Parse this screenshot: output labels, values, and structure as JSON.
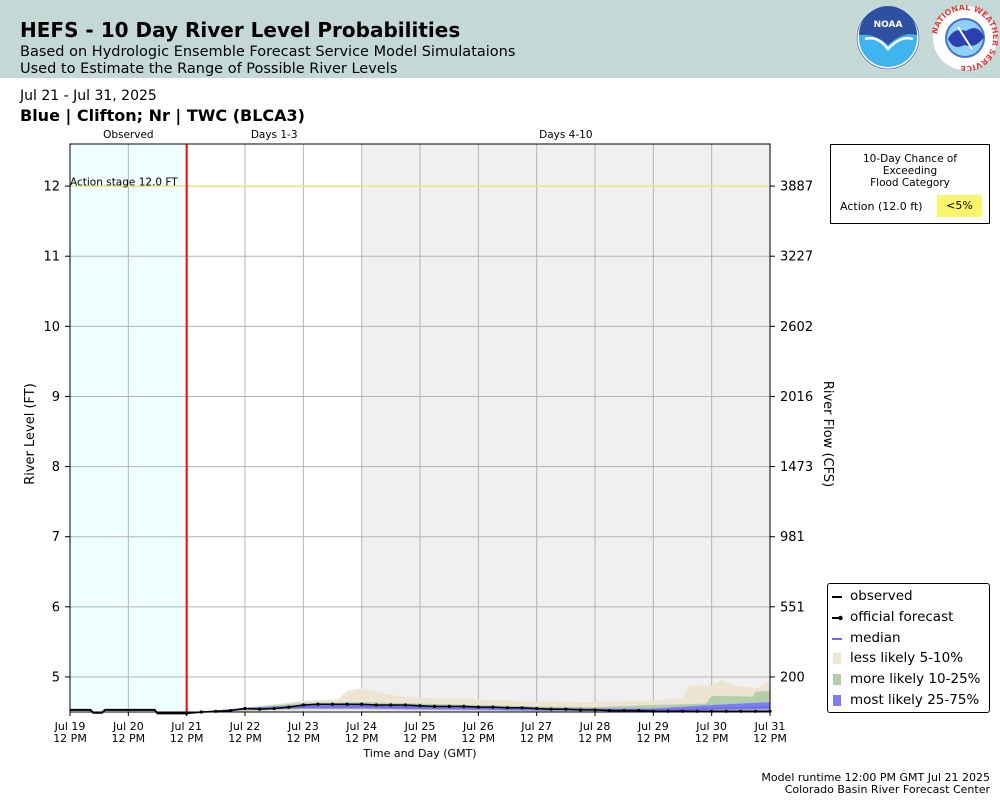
{
  "header": {
    "title": "HEFS - 10 Day River Level Probabilities",
    "subtitle_line1": "Based on Hydrologic Ensemble Forecast Service Model Simulataions",
    "subtitle_line2": "Used to Estimate the Range of Possible River Levels",
    "noaa_logo_text": "NOAA",
    "nws_logo_text": "NATIONAL WEATHER SERVICE"
  },
  "date_range": "Jul 21 - Jul 31, 2025",
  "location": "Blue | Clifton; Nr | TWC (BLCA3)",
  "exceedance_legend": {
    "title": "10-Day Chance of\nExceeding\nFlood Category",
    "category_label": "Action (12.0 ft)",
    "value": "<5%",
    "value_color": "#fbf56c"
  },
  "series_legend": [
    {
      "label": "observed",
      "kind": "line",
      "color": "#000000"
    },
    {
      "label": "official forecast",
      "kind": "dotline",
      "color": "#000000"
    },
    {
      "label": "median",
      "kind": "line",
      "color": "#6b6bf5"
    },
    {
      "label": "less likely 5-10%",
      "kind": "box",
      "color": "#eee4d2"
    },
    {
      "label": "more likely 10-25%",
      "kind": "box",
      "color": "#b3cfa9"
    },
    {
      "label": "most likely 25-75%",
      "kind": "box",
      "color": "#7d7df0"
    }
  ],
  "footer": {
    "line1": "Model runtime 12:00 PM GMT Jul 21 2025",
    "line2": "Colorado Basin River Forecast Center"
  },
  "chart_data": {
    "type": "area",
    "xlabel": "Time and Day (GMT)",
    "ylabel": "River Level (FT)",
    "y2label": "River Flow (CFS)",
    "ylim": [
      4.5,
      12.6
    ],
    "yticks": [
      5,
      6,
      7,
      8,
      9,
      10,
      11,
      12
    ],
    "y2ticks": [
      {
        "stage": 5,
        "label": "200"
      },
      {
        "stage": 6,
        "label": "551"
      },
      {
        "stage": 7,
        "label": "981"
      },
      {
        "stage": 8,
        "label": "1473"
      },
      {
        "stage": 9,
        "label": "2016"
      },
      {
        "stage": 10,
        "label": "2602"
      },
      {
        "stage": 11,
        "label": "3227"
      },
      {
        "stage": 12,
        "label": "3887"
      }
    ],
    "xlim": [
      0,
      12
    ],
    "xticks": [
      {
        "x": 0,
        "line1": "Jul 19",
        "line2": "12 PM"
      },
      {
        "x": 1,
        "line1": "Jul 20",
        "line2": "12 PM"
      },
      {
        "x": 2,
        "line1": "Jul 21",
        "line2": "12 PM"
      },
      {
        "x": 3,
        "line1": "Jul 22",
        "line2": "12 PM"
      },
      {
        "x": 4,
        "line1": "Jul 23",
        "line2": "12 PM"
      },
      {
        "x": 5,
        "line1": "Jul 24",
        "line2": "12 PM"
      },
      {
        "x": 6,
        "line1": "Jul 25",
        "line2": "12 PM"
      },
      {
        "x": 7,
        "line1": "Jul 26",
        "line2": "12 PM"
      },
      {
        "x": 8,
        "line1": "Jul 27",
        "line2": "12 PM"
      },
      {
        "x": 9,
        "line1": "Jul 28",
        "line2": "12 PM"
      },
      {
        "x": 10,
        "line1": "Jul 29",
        "line2": "12 PM"
      },
      {
        "x": 11,
        "line1": "Jul 30",
        "line2": "12 PM"
      },
      {
        "x": 12,
        "line1": "Jul 31",
        "line2": "12 PM"
      }
    ],
    "periods": [
      {
        "label": "Observed",
        "start": 0,
        "end": 2,
        "color": "#efffff"
      },
      {
        "label": "Days 1-3",
        "start": 2,
        "end": 5,
        "color": "#ffffff"
      },
      {
        "label": "Days 4-10",
        "start": 5,
        "end": 12,
        "color": "#f0f0f0"
      }
    ],
    "forecast_start": 2,
    "action_stage": {
      "value": 12.0,
      "label": "Action stage 12.0 FT",
      "color": "#ece87a"
    },
    "observed": [
      [
        0,
        4.53
      ],
      [
        0.35,
        4.53
      ],
      [
        0.4,
        4.49
      ],
      [
        0.55,
        4.49
      ],
      [
        0.6,
        4.53
      ],
      [
        1.45,
        4.53
      ],
      [
        1.5,
        4.48
      ],
      [
        2,
        4.48
      ]
    ],
    "official_forecast": [
      [
        2,
        4.48
      ],
      [
        2.25,
        4.5
      ],
      [
        2.5,
        4.51
      ],
      [
        2.75,
        4.52
      ],
      [
        3,
        4.55
      ],
      [
        3.25,
        4.54
      ],
      [
        3.5,
        4.55
      ],
      [
        3.75,
        4.57
      ],
      [
        4,
        4.6
      ],
      [
        4.25,
        4.61
      ],
      [
        4.5,
        4.61
      ],
      [
        4.75,
        4.61
      ],
      [
        5,
        4.61
      ],
      [
        5.25,
        4.6
      ],
      [
        5.5,
        4.6
      ],
      [
        5.75,
        4.6
      ],
      [
        6,
        4.59
      ],
      [
        6.25,
        4.58
      ],
      [
        6.5,
        4.58
      ],
      [
        6.75,
        4.58
      ],
      [
        7,
        4.57
      ],
      [
        7.25,
        4.57
      ],
      [
        7.5,
        4.56
      ],
      [
        7.75,
        4.56
      ],
      [
        8,
        4.55
      ],
      [
        8.25,
        4.54
      ],
      [
        8.5,
        4.54
      ],
      [
        8.75,
        4.53
      ],
      [
        9,
        4.53
      ],
      [
        9.25,
        4.52
      ],
      [
        9.5,
        4.52
      ],
      [
        9.75,
        4.52
      ],
      [
        10,
        4.51
      ],
      [
        10.25,
        4.51
      ],
      [
        10.5,
        4.51
      ],
      [
        10.75,
        4.51
      ],
      [
        11,
        4.51
      ],
      [
        11.25,
        4.51
      ],
      [
        11.5,
        4.51
      ],
      [
        11.75,
        4.51
      ],
      [
        12,
        4.51
      ]
    ],
    "median": [
      [
        2,
        4.48
      ],
      [
        2.5,
        4.51
      ],
      [
        3,
        4.55
      ],
      [
        3.5,
        4.55
      ],
      [
        4,
        4.57
      ],
      [
        4.5,
        4.58
      ],
      [
        5,
        4.58
      ],
      [
        5.5,
        4.57
      ],
      [
        6,
        4.57
      ],
      [
        6.5,
        4.56
      ],
      [
        7,
        4.56
      ],
      [
        7.5,
        4.55
      ],
      [
        8,
        4.54
      ],
      [
        8.5,
        4.54
      ],
      [
        9,
        4.53
      ],
      [
        9.5,
        4.53
      ],
      [
        10,
        4.53
      ],
      [
        10.5,
        4.53
      ],
      [
        11,
        4.55
      ],
      [
        11.5,
        4.56
      ],
      [
        12,
        4.57
      ]
    ],
    "band_less_likely": [
      [
        2,
        4.48,
        4.48
      ],
      [
        3,
        4.5,
        4.56
      ],
      [
        4,
        4.52,
        4.66
      ],
      [
        4.6,
        4.52,
        4.68
      ],
      [
        4.75,
        4.52,
        4.8
      ],
      [
        5,
        4.52,
        4.84
      ],
      [
        5.5,
        4.52,
        4.74
      ],
      [
        6,
        4.51,
        4.7
      ],
      [
        7,
        4.51,
        4.68
      ],
      [
        8,
        4.5,
        4.65
      ],
      [
        9,
        4.5,
        4.64
      ],
      [
        9.5,
        4.5,
        4.66
      ],
      [
        10,
        4.5,
        4.66
      ],
      [
        10.5,
        4.5,
        4.7
      ],
      [
        10.6,
        4.5,
        4.87
      ],
      [
        11,
        4.5,
        4.88
      ],
      [
        11.15,
        4.5,
        4.95
      ],
      [
        11.5,
        4.5,
        4.86
      ],
      [
        11.8,
        4.5,
        4.84
      ],
      [
        12,
        4.5,
        4.93
      ]
    ],
    "band_more_likely": [
      [
        2,
        4.48,
        4.48
      ],
      [
        3,
        4.52,
        4.56
      ],
      [
        4,
        4.54,
        4.63
      ],
      [
        5,
        4.54,
        4.64
      ],
      [
        6,
        4.53,
        4.62
      ],
      [
        7,
        4.52,
        4.6
      ],
      [
        8,
        4.51,
        4.58
      ],
      [
        9,
        4.51,
        4.57
      ],
      [
        10,
        4.51,
        4.6
      ],
      [
        10.9,
        4.51,
        4.62
      ],
      [
        11,
        4.51,
        4.73
      ],
      [
        11.7,
        4.51,
        4.72
      ],
      [
        11.75,
        4.51,
        4.79
      ],
      [
        12,
        4.51,
        4.8
      ]
    ],
    "band_most_likely": [
      [
        2,
        4.48,
        4.48
      ],
      [
        3,
        4.53,
        4.56
      ],
      [
        4,
        4.55,
        4.6
      ],
      [
        5,
        4.55,
        4.6
      ],
      [
        6,
        4.54,
        4.59
      ],
      [
        7,
        4.53,
        4.58
      ],
      [
        8,
        4.52,
        4.56
      ],
      [
        9,
        4.52,
        4.55
      ],
      [
        10,
        4.52,
        4.55
      ],
      [
        11,
        4.53,
        4.6
      ],
      [
        12,
        4.54,
        4.64
      ]
    ]
  }
}
